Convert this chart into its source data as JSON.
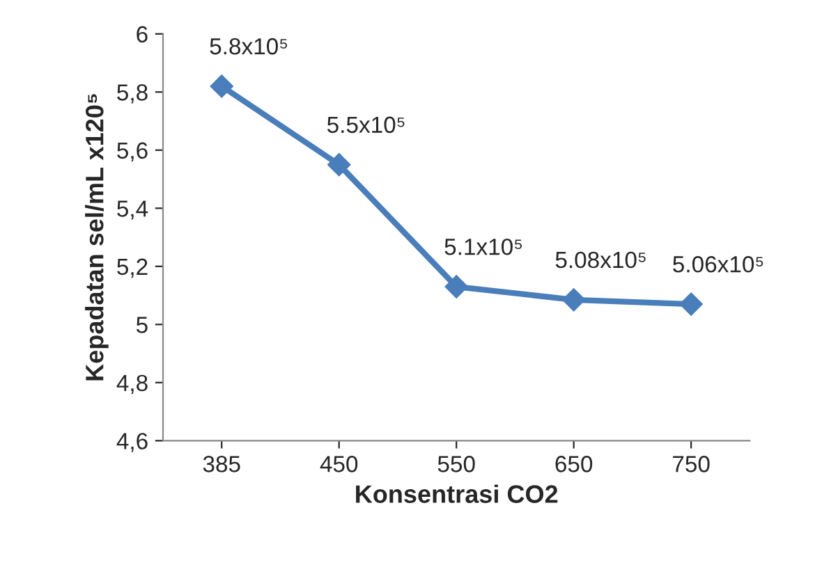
{
  "chart_data": {
    "type": "line",
    "xlabel": "Konsentrasi CO2",
    "ylabel": "Kepadatan sel/mL x120⁵",
    "categories": [
      "385",
      "450",
      "550",
      "650",
      "750"
    ],
    "series": [
      {
        "color": "#4a7ebb",
        "values": [
          5.82,
          5.55,
          5.13,
          5.085,
          5.07
        ]
      }
    ],
    "annotations": [
      {
        "text": "5.8x10⁵",
        "x": "385",
        "y": 5.82
      },
      {
        "text": "5.5x10⁵",
        "x": "450",
        "y": 5.55
      },
      {
        "text": "5.1x10⁵",
        "x": "550",
        "y": 5.13
      },
      {
        "text": "5.08x10⁵",
        "x": "650",
        "y": 5.085
      },
      {
        "text": "5.06x10⁵",
        "x": "750",
        "y": 5.07
      }
    ],
    "ylim": [
      4.6,
      6.0
    ],
    "yticks": [
      {
        "value": 4.6,
        "label": "4,6"
      },
      {
        "value": 4.8,
        "label": "4,8"
      },
      {
        "value": 5.0,
        "label": "5"
      },
      {
        "value": 5.2,
        "label": "5,2"
      },
      {
        "value": 5.4,
        "label": "5,4"
      },
      {
        "value": 5.6,
        "label": "5,6"
      },
      {
        "value": 5.8,
        "label": "5,8"
      },
      {
        "value": 6.0,
        "label": "6"
      }
    ],
    "marker": "diamond",
    "line_style": "solid",
    "grid": false,
    "legend": false
  }
}
